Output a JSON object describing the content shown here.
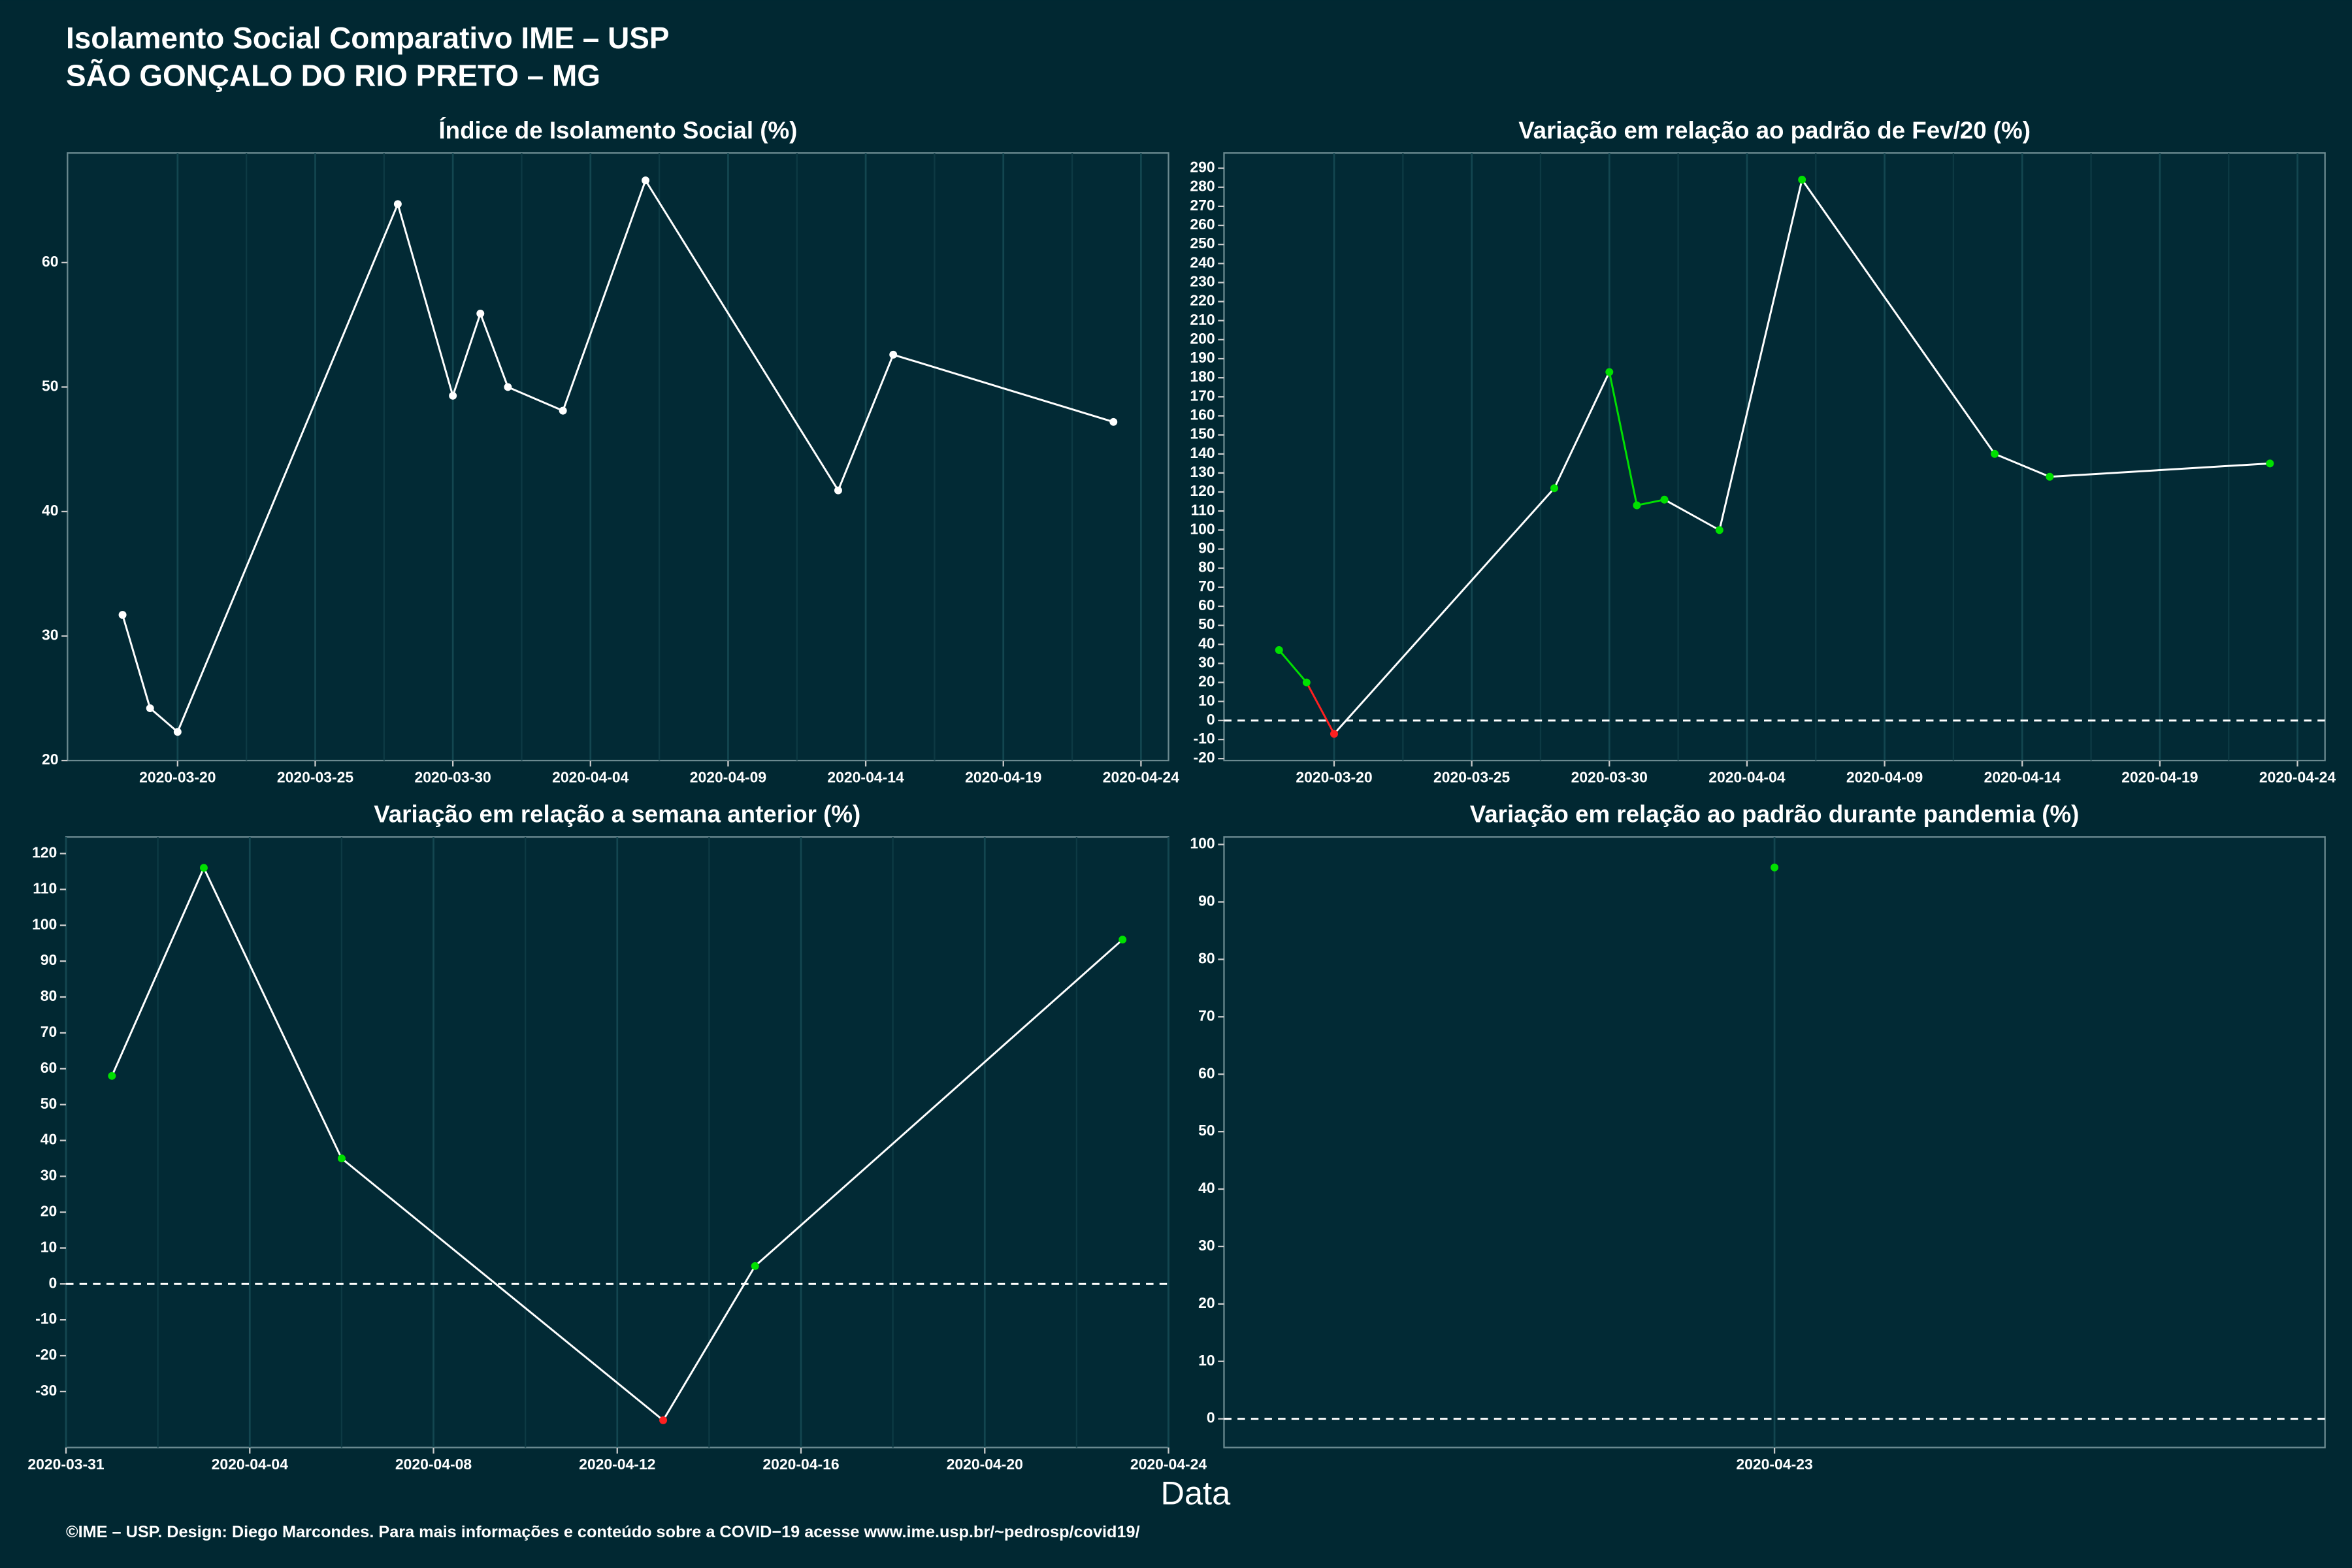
{
  "figure": {
    "title": "Isolamento Social Comparativo IME – USP",
    "subtitle": "SÃO GONÇALO DO RIO PRETO – MG",
    "xlabel": "Data",
    "footer": "©IME – USP. Design: Diego Marcondes. Para mais informações e conteúdo sobre a COVID−19 acesse www.ime.usp.br/~pedrosp/covid19/"
  },
  "chart_data": [
    {
      "type": "line",
      "title": "Índice de Isolamento Social (%)",
      "x": [
        "2020-03-18",
        "2020-03-19",
        "2020-03-20",
        "2020-03-28",
        "2020-03-30",
        "2020-03-31",
        "2020-04-01",
        "2020-04-03",
        "2020-04-06",
        "2020-04-13",
        "2020-04-15",
        "2020-04-23"
      ],
      "values": [
        31.7,
        24.2,
        22.3,
        64.7,
        49.3,
        55.9,
        50.0,
        48.1,
        66.6,
        41.7,
        52.6,
        47.2
      ],
      "point_colors": [
        "#ffffff",
        "#ffffff",
        "#ffffff",
        "#ffffff",
        "#ffffff",
        "#ffffff",
        "#ffffff",
        "#ffffff",
        "#ffffff",
        "#ffffff",
        "#ffffff",
        "#ffffff"
      ],
      "segment_colors": [
        "#ffffff",
        "#ffffff",
        "#ffffff",
        "#ffffff",
        "#ffffff",
        "#ffffff",
        "#ffffff",
        "#ffffff",
        "#ffffff",
        "#ffffff",
        "#ffffff"
      ],
      "xlim": [
        "2020-03-16",
        "2020-04-25"
      ],
      "xticks": [
        "2020-03-20",
        "2020-03-25",
        "2020-03-30",
        "2020-04-04",
        "2020-04-09",
        "2020-04-14",
        "2020-04-19",
        "2020-04-24"
      ],
      "ylim": [
        20,
        68.8
      ],
      "yticks": [
        20,
        30,
        40,
        50,
        60
      ],
      "grid": true
    },
    {
      "type": "line",
      "title": "Variação em relação ao padrão de Fev/20 (%)",
      "x": [
        "2020-03-18",
        "2020-03-19",
        "2020-03-20",
        "2020-03-28",
        "2020-03-30",
        "2020-03-31",
        "2020-04-01",
        "2020-04-03",
        "2020-04-06",
        "2020-04-13",
        "2020-04-15",
        "2020-04-23"
      ],
      "values": [
        37,
        20,
        -7,
        122,
        183,
        113,
        116,
        100,
        284,
        140,
        128,
        135
      ],
      "point_colors": [
        "#00e000",
        "#00e000",
        "#ff2020",
        "#00e000",
        "#00e000",
        "#00e000",
        "#00e000",
        "#00e000",
        "#00e000",
        "#00e000",
        "#00e000",
        "#00e000"
      ],
      "segment_colors": [
        "#00e000",
        "#ff2020",
        "#ffffff",
        "#ffffff",
        "#00e000",
        "#00e000",
        "#ffffff",
        "#ffffff",
        "#ffffff",
        "#ffffff",
        "#ffffff"
      ],
      "xlim": [
        "2020-03-16",
        "2020-04-25"
      ],
      "xticks": [
        "2020-03-20",
        "2020-03-25",
        "2020-03-30",
        "2020-04-04",
        "2020-04-09",
        "2020-04-14",
        "2020-04-19",
        "2020-04-24"
      ],
      "ylim": [
        -21,
        298
      ],
      "yticks": [
        -20,
        -10,
        0,
        10,
        20,
        30,
        40,
        50,
        60,
        70,
        80,
        90,
        100,
        110,
        120,
        130,
        140,
        150,
        160,
        170,
        180,
        190,
        200,
        210,
        220,
        230,
        240,
        250,
        260,
        270,
        280,
        290
      ],
      "hline": 0,
      "grid": true
    },
    {
      "type": "line",
      "title": "Variação em relação a semana anterior (%)",
      "x": [
        "2020-04-01",
        "2020-04-03",
        "2020-04-06",
        "2020-04-13",
        "2020-04-15",
        "2020-04-23"
      ],
      "values": [
        58,
        116,
        35,
        -38,
        5,
        96
      ],
      "point_colors": [
        "#00e000",
        "#00e000",
        "#00e000",
        "#ff2020",
        "#00e000",
        "#00e000"
      ],
      "segment_colors": [
        "#ffffff",
        "#ffffff",
        "#ffffff",
        "#ffffff",
        "#ffffff"
      ],
      "xlim": [
        "2020-03-31",
        "2020-04-24"
      ],
      "xticks": [
        "2020-03-31",
        "2020-04-04",
        "2020-04-08",
        "2020-04-12",
        "2020-04-16",
        "2020-04-20",
        "2020-04-24"
      ],
      "ylim": [
        -45.6,
        124.6
      ],
      "yticks": [
        -30,
        -20,
        -10,
        0,
        10,
        20,
        30,
        40,
        50,
        60,
        70,
        80,
        90,
        100,
        110,
        120
      ],
      "hline": 0,
      "grid": true
    },
    {
      "type": "line",
      "title": "Variação em relação ao padrão durante pandemia (%)",
      "x": [
        "2020-04-23"
      ],
      "values": [
        96
      ],
      "point_colors": [
        "#00e000"
      ],
      "xlim": [
        "2020-04-22",
        "2020-04-24"
      ],
      "xticks": [
        "2020-04-23"
      ],
      "ylim": [
        -5,
        101.3
      ],
      "yticks": [
        0,
        10,
        20,
        30,
        40,
        50,
        60,
        70,
        80,
        90,
        100
      ],
      "hline": 0,
      "grid": true
    }
  ]
}
